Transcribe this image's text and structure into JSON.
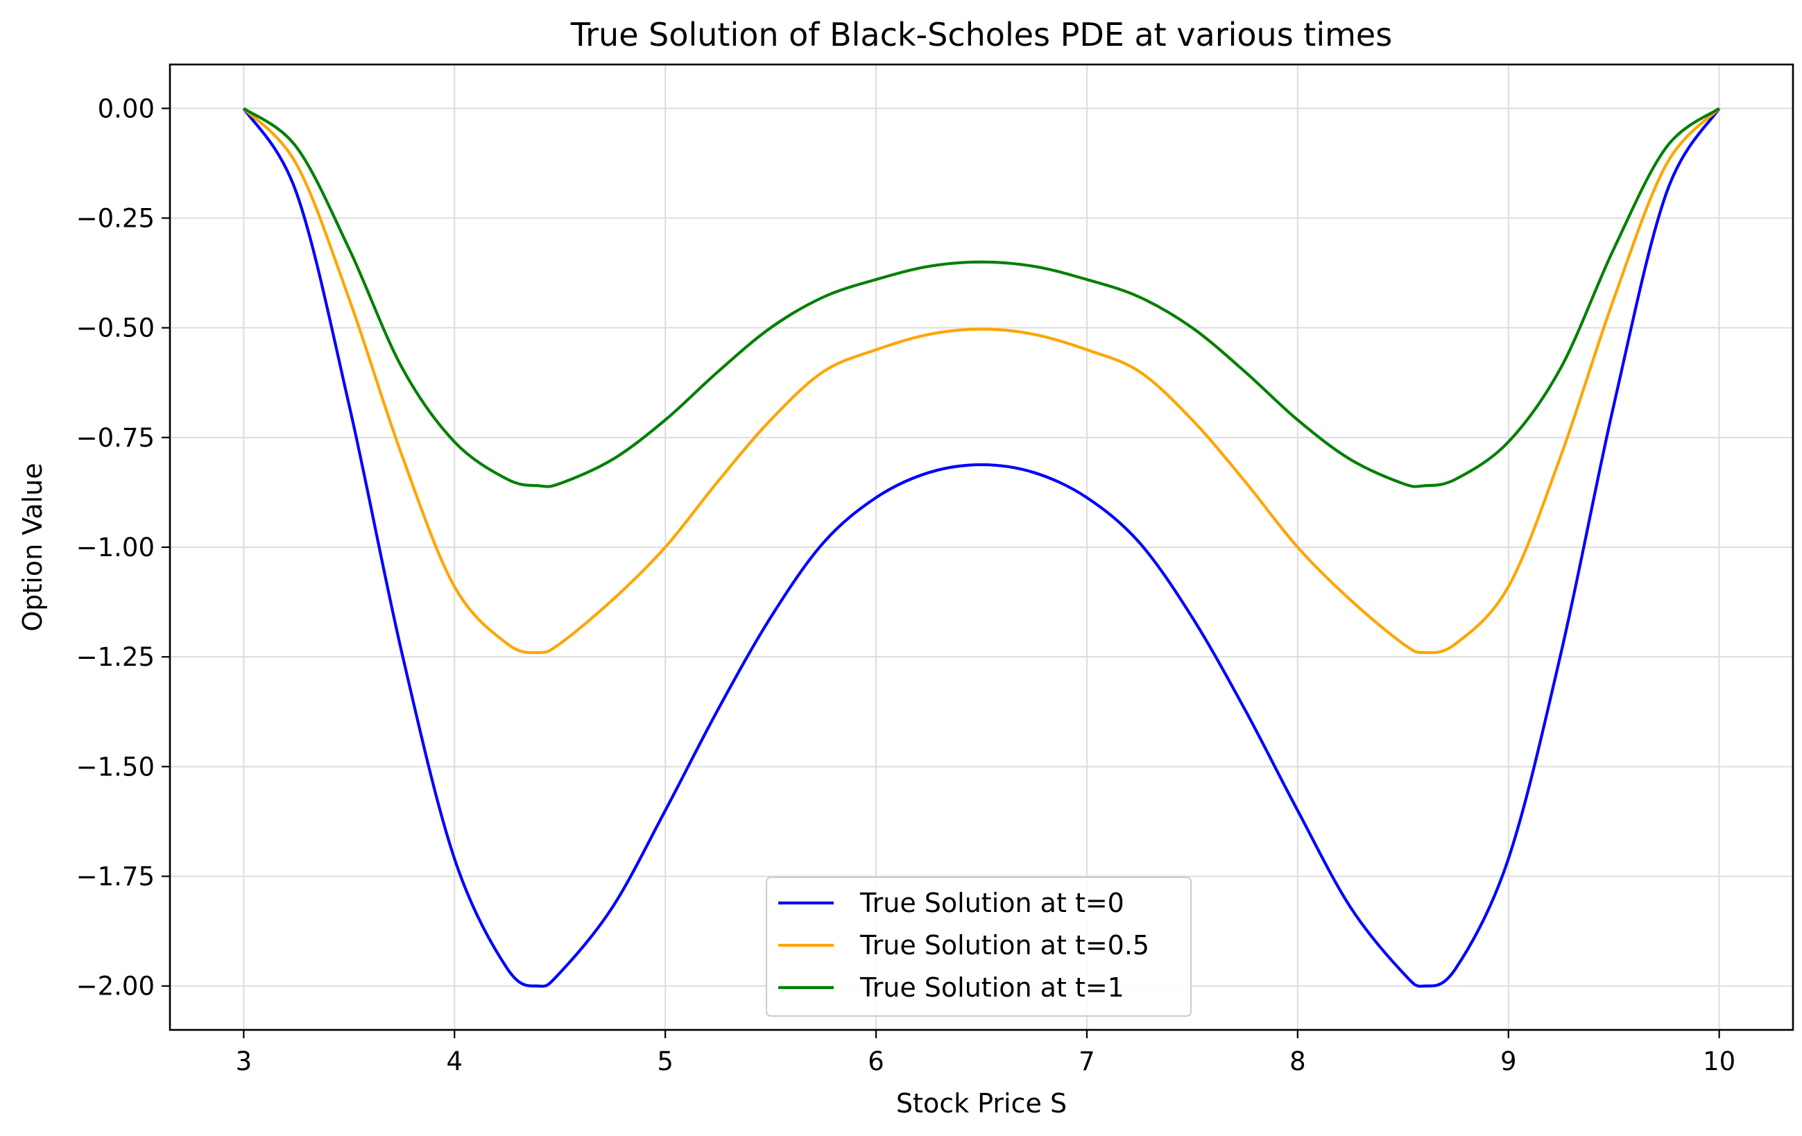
{
  "chart_data": {
    "type": "line",
    "title": "True Solution of Black-Scholes PDE at various times",
    "xlabel": "Stock Price S",
    "ylabel": "Option Value",
    "xlim": [
      2.65,
      10.35
    ],
    "ylim": [
      -2.1,
      0.1
    ],
    "x_ticks": [
      "3",
      "4",
      "5",
      "6",
      "7",
      "8",
      "9",
      "10"
    ],
    "x_tick_values": [
      3,
      4,
      5,
      6,
      7,
      8,
      9,
      10
    ],
    "y_ticks": [
      "0.00",
      "−0.25",
      "−0.50",
      "−0.75",
      "−1.00",
      "−1.25",
      "−1.50",
      "−1.75",
      "−2.00"
    ],
    "y_tick_values": [
      0,
      -0.25,
      -0.5,
      -0.75,
      -1.0,
      -1.25,
      -1.5,
      -1.75,
      -2.0
    ],
    "grid": true,
    "legend_position": "bottom-center",
    "x": [
      3.0,
      3.25,
      3.5,
      3.75,
      4.0,
      4.25,
      4.4,
      4.5,
      4.75,
      5.0,
      5.25,
      5.5,
      5.75,
      6.0,
      6.25,
      6.5,
      6.75,
      7.0,
      7.25,
      7.5,
      7.75,
      8.0,
      8.25,
      8.5,
      8.6,
      8.75,
      9.0,
      9.25,
      9.5,
      9.75,
      10.0
    ],
    "series": [
      {
        "name": "True Solution at t=0",
        "color": "#0000ff",
        "values": [
          0.0,
          -0.192,
          -0.676,
          -1.24,
          -1.71,
          -1.96,
          -2.0,
          -1.97,
          -1.82,
          -1.6,
          -1.37,
          -1.16,
          -0.99,
          -0.887,
          -0.83,
          -0.812,
          -0.83,
          -0.887,
          -0.99,
          -1.16,
          -1.37,
          -1.6,
          -1.82,
          -1.97,
          -2.0,
          -1.96,
          -1.71,
          -1.24,
          -0.676,
          -0.192,
          0.0
        ]
      },
      {
        "name": "True Solution at t=0.5",
        "color": "#ffa500",
        "values": [
          0.0,
          -0.127,
          -0.434,
          -0.79,
          -1.09,
          -1.22,
          -1.24,
          -1.22,
          -1.12,
          -1.0,
          -0.85,
          -0.71,
          -0.6,
          -0.55,
          -0.515,
          -0.503,
          -0.515,
          -0.55,
          -0.6,
          -0.71,
          -0.85,
          -1.0,
          -1.12,
          -1.22,
          -1.24,
          -1.22,
          -1.09,
          -0.79,
          -0.434,
          -0.127,
          0.0
        ]
      },
      {
        "name": "True Solution at t=1",
        "color": "#008000",
        "values": [
          0.0,
          -0.088,
          -0.32,
          -0.59,
          -0.76,
          -0.845,
          -0.86,
          -0.855,
          -0.8,
          -0.71,
          -0.6,
          -0.5,
          -0.43,
          -0.39,
          -0.36,
          -0.35,
          -0.36,
          -0.39,
          -0.43,
          -0.5,
          -0.6,
          -0.71,
          -0.8,
          -0.855,
          -0.86,
          -0.845,
          -0.76,
          -0.59,
          -0.32,
          -0.088,
          0.0
        ]
      }
    ]
  }
}
